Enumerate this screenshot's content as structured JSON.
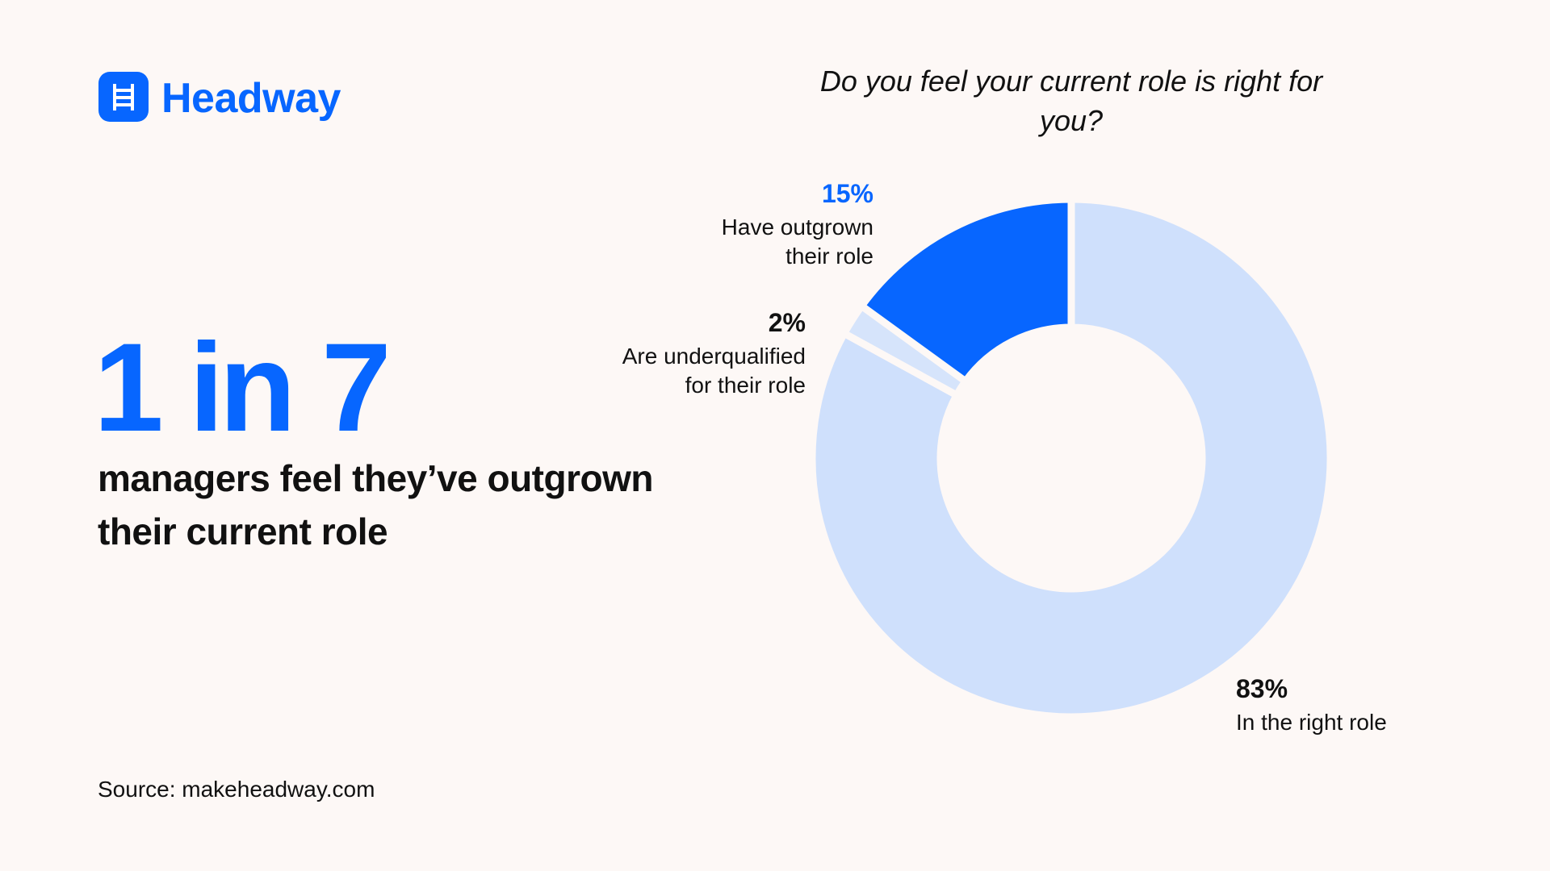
{
  "brand": "Headway",
  "headline": {
    "stat": "1 in 7",
    "text": "managers feel they’ve outgrown their current role"
  },
  "source": "Source: makeheadway.com",
  "chart_data": {
    "type": "donut",
    "title": "Do you feel your current role is right for you?",
    "categories": [
      "In the right role",
      "Are underqualified for their role",
      "Have outgrown their role"
    ],
    "values": [
      83,
      2,
      15
    ],
    "value_labels": [
      "83%",
      "2%",
      "15%"
    ],
    "colors": [
      "#cfe0fc",
      "#d6e4fb",
      "#0766ff"
    ]
  }
}
